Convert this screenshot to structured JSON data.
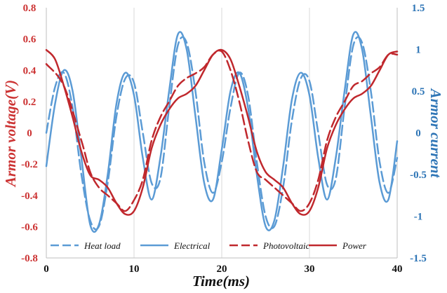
{
  "chart_data": {
    "type": "line",
    "xlabel": "Time(ms)",
    "ylabel_left": "Armor voltage(V)",
    "ylabel_right": "Armor current",
    "x_ticks": [
      "0",
      "10",
      "20",
      "30",
      "40"
    ],
    "y_left_ticks": [
      "0.8",
      "0.6",
      "0.4",
      "0.2",
      "0",
      "-0.2",
      "-0.4",
      "-0.6",
      "-0.8"
    ],
    "y_right_ticks": [
      "1.5",
      "1",
      "0.5",
      "0",
      "-0.5",
      "-1",
      "-1.5"
    ],
    "xlim": [
      0,
      40
    ],
    "ylim_left": [
      -0.8,
      0.8
    ],
    "ylim_right": [
      -1.5,
      1.5
    ],
    "colors": {
      "voltage": "#c0282d",
      "current": "#5b9bd5",
      "left_axis": "#cc3333",
      "right_axis": "#2e75b6"
    },
    "series": [
      {
        "name": "Heat load",
        "axis": "right",
        "style": "dashed",
        "color": "#5b9bd5",
        "points": [
          [
            0,
            0
          ],
          [
            1,
            0.55
          ],
          [
            2,
            0.72
          ],
          [
            3,
            0.3
          ],
          [
            4,
            -0.5
          ],
          [
            5,
            -1.05
          ],
          [
            6,
            -1.12
          ],
          [
            7,
            -0.6
          ],
          [
            8,
            0.2
          ],
          [
            9,
            0.65
          ],
          [
            10,
            0.6
          ],
          [
            11,
            0.0
          ],
          [
            12,
            -0.6
          ],
          [
            13,
            -0.55
          ],
          [
            14,
            0.3
          ],
          [
            15,
            1.05
          ],
          [
            16,
            1.08
          ],
          [
            17,
            0.5
          ],
          [
            18,
            -0.35
          ],
          [
            19,
            -0.72
          ],
          [
            20,
            -0.35
          ],
          [
            21,
            0.3
          ],
          [
            22,
            0.72
          ],
          [
            23,
            0.45
          ],
          [
            24,
            -0.35
          ],
          [
            25,
            -1.0
          ],
          [
            26,
            -1.12
          ],
          [
            27,
            -0.65
          ],
          [
            28,
            0.15
          ],
          [
            29,
            0.65
          ],
          [
            30,
            0.62
          ],
          [
            31,
            0.0
          ],
          [
            32,
            -0.62
          ],
          [
            33,
            -0.55
          ],
          [
            34,
            0.3
          ],
          [
            35,
            1.05
          ],
          [
            36,
            1.08
          ],
          [
            37,
            0.5
          ],
          [
            38,
            -0.35
          ],
          [
            39,
            -0.72
          ],
          [
            40,
            -0.3
          ]
        ]
      },
      {
        "name": "Electrical",
        "axis": "right",
        "style": "solid",
        "color": "#5b9bd5",
        "points": [
          [
            0,
            -0.4
          ],
          [
            1,
            0.35
          ],
          [
            2,
            0.75
          ],
          [
            3,
            0.5
          ],
          [
            4,
            -0.3
          ],
          [
            5,
            -1.1
          ],
          [
            6,
            -1.1
          ],
          [
            7,
            -0.5
          ],
          [
            8,
            0.35
          ],
          [
            9,
            0.72
          ],
          [
            10,
            0.45
          ],
          [
            11,
            -0.3
          ],
          [
            12,
            -0.8
          ],
          [
            13,
            -0.3
          ],
          [
            14,
            0.5
          ],
          [
            15,
            1.18
          ],
          [
            16,
            1.0
          ],
          [
            17,
            0.2
          ],
          [
            18,
            -0.6
          ],
          [
            19,
            -0.8
          ],
          [
            20,
            -0.2
          ],
          [
            21,
            0.5
          ],
          [
            22,
            0.72
          ],
          [
            23,
            0.3
          ],
          [
            24,
            -0.5
          ],
          [
            25,
            -1.12
          ],
          [
            26,
            -1.05
          ],
          [
            27,
            -0.4
          ],
          [
            28,
            0.4
          ],
          [
            29,
            0.72
          ],
          [
            30,
            0.45
          ],
          [
            31,
            -0.3
          ],
          [
            32,
            -0.8
          ],
          [
            33,
            -0.3
          ],
          [
            34,
            0.5
          ],
          [
            35,
            1.18
          ],
          [
            36,
            1.0
          ],
          [
            37,
            0.2
          ],
          [
            38,
            -0.6
          ],
          [
            39,
            -0.8
          ],
          [
            40,
            -0.1
          ]
        ]
      },
      {
        "name": "Photovoltaic",
        "axis": "left",
        "style": "dashed",
        "color": "#c0282d",
        "points": [
          [
            0,
            0.44
          ],
          [
            2,
            0.3
          ],
          [
            4,
            -0.05
          ],
          [
            5,
            -0.25
          ],
          [
            6,
            -0.35
          ],
          [
            7,
            -0.4
          ],
          [
            8,
            -0.45
          ],
          [
            9,
            -0.5
          ],
          [
            10,
            -0.43
          ],
          [
            11,
            -0.3
          ],
          [
            12,
            -0.05
          ],
          [
            13,
            0.1
          ],
          [
            14,
            0.2
          ],
          [
            15,
            0.3
          ],
          [
            16,
            0.35
          ],
          [
            17,
            0.38
          ],
          [
            18,
            0.42
          ],
          [
            19,
            0.5
          ],
          [
            20,
            0.52
          ],
          [
            21,
            0.4
          ],
          [
            22,
            0.2
          ],
          [
            23,
            -0.05
          ],
          [
            24,
            -0.25
          ],
          [
            25,
            -0.3
          ],
          [
            26,
            -0.35
          ],
          [
            27,
            -0.4
          ],
          [
            28,
            -0.45
          ],
          [
            29,
            -0.5
          ],
          [
            30,
            -0.45
          ],
          [
            31,
            -0.3
          ],
          [
            32,
            -0.05
          ],
          [
            33,
            0.1
          ],
          [
            34,
            0.2
          ],
          [
            35,
            0.3
          ],
          [
            36,
            0.33
          ],
          [
            37,
            0.38
          ],
          [
            38,
            0.42
          ],
          [
            39,
            0.5
          ],
          [
            40,
            0.5
          ]
        ]
      },
      {
        "name": "Power",
        "axis": "left",
        "style": "solid",
        "color": "#c0282d",
        "points": [
          [
            0,
            0.53
          ],
          [
            1,
            0.47
          ],
          [
            2,
            0.3
          ],
          [
            3,
            0.1
          ],
          [
            4,
            -0.12
          ],
          [
            5,
            -0.27
          ],
          [
            6,
            -0.3
          ],
          [
            7,
            -0.35
          ],
          [
            8,
            -0.45
          ],
          [
            9,
            -0.52
          ],
          [
            10,
            -0.5
          ],
          [
            11,
            -0.35
          ],
          [
            12,
            -0.1
          ],
          [
            13,
            0.05
          ],
          [
            14,
            0.15
          ],
          [
            15,
            0.22
          ],
          [
            16,
            0.25
          ],
          [
            17,
            0.3
          ],
          [
            18,
            0.4
          ],
          [
            19,
            0.5
          ],
          [
            20,
            0.53
          ],
          [
            21,
            0.47
          ],
          [
            22,
            0.3
          ],
          [
            23,
            0.1
          ],
          [
            24,
            -0.12
          ],
          [
            25,
            -0.25
          ],
          [
            26,
            -0.3
          ],
          [
            27,
            -0.35
          ],
          [
            28,
            -0.45
          ],
          [
            29,
            -0.52
          ],
          [
            30,
            -0.5
          ],
          [
            31,
            -0.35
          ],
          [
            32,
            -0.1
          ],
          [
            33,
            0.05
          ],
          [
            34,
            0.15
          ],
          [
            35,
            0.22
          ],
          [
            36,
            0.25
          ],
          [
            37,
            0.3
          ],
          [
            38,
            0.4
          ],
          [
            39,
            0.5
          ],
          [
            40,
            0.52
          ]
        ]
      }
    ],
    "legend": [
      {
        "label": "Heat load",
        "style": "dashed",
        "color": "#5b9bd5"
      },
      {
        "label": "Electrical",
        "style": "solid",
        "color": "#5b9bd5"
      },
      {
        "label": "Photovoltaic",
        "style": "dashed",
        "color": "#c0282d"
      },
      {
        "label": "Power",
        "style": "solid",
        "color": "#c0282d"
      }
    ]
  }
}
